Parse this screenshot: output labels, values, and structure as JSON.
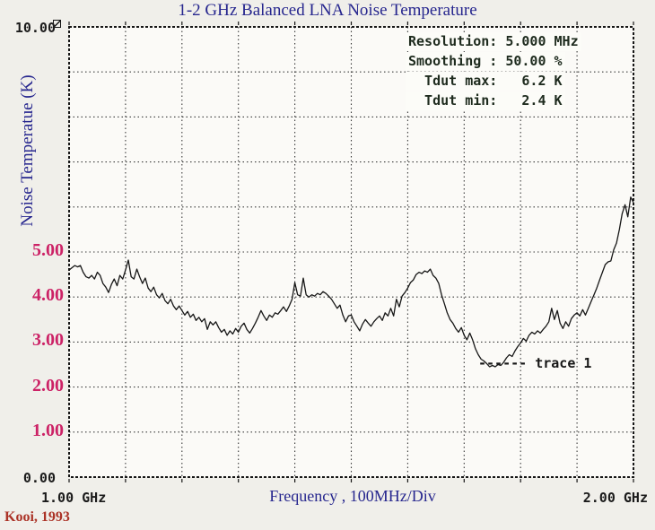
{
  "info_panel": {
    "rows": [
      {
        "label": "Resolution:",
        "value": "5.000",
        "unit": "MHz"
      },
      {
        "label": "Smoothing :",
        "value": "50.00",
        "unit": "%"
      },
      {
        "label": "Tdut max:",
        "value": "6.2",
        "unit": "K"
      },
      {
        "label": "Tdut min:",
        "value": "2.4",
        "unit": "K"
      }
    ]
  },
  "annotation": {
    "leader": "------",
    "text": "trace 1"
  },
  "source_credit": "Kooi, 1993",
  "colors": {
    "title_blue": "#26268e",
    "tick_magenta": "#cc2266",
    "credit_red": "#ab3226",
    "trace_black": "#161616",
    "grid_gray": "#3a3a3a",
    "plot_background": "#fbfaf7",
    "page_background": "#f0efea"
  },
  "chart_data": {
    "type": "line",
    "title": "1-2 GHz Balanced LNA Noise Temperature",
    "xlabel": "Frequency , 100MHz/Div",
    "ylabel": "Noise Temperatue (K)",
    "xlim": [
      1.0,
      2.0
    ],
    "ylim": [
      0,
      10
    ],
    "x_unit": "GHz",
    "y_unit": "K",
    "grid": true,
    "x_grid_step": 0.1,
    "y_grid_step": 1,
    "x_tick_labels": [
      {
        "value": 1.0,
        "label": "1.00 GHz"
      },
      {
        "value": 2.0,
        "label": "2.00 GHz"
      }
    ],
    "y_tick_labels_serif": [
      {
        "value": 5,
        "label": "5.00"
      },
      {
        "value": 4,
        "label": "4.00"
      },
      {
        "value": 3,
        "label": "3.00"
      },
      {
        "value": 2,
        "label": "2.00"
      },
      {
        "value": 1,
        "label": "1.00"
      }
    ],
    "y_tick_labels_mono": [
      {
        "value": 10,
        "label": "10.00"
      },
      {
        "value": 0,
        "label": "0.00"
      }
    ],
    "stats": {
      "resolution_mhz": 5.0,
      "smoothing_pct": 50.0,
      "tdut_max_k": 6.2,
      "tdut_min_k": 2.4
    },
    "series": [
      {
        "name": "trace 1",
        "points": [
          [
            1.0,
            4.6
          ],
          [
            1.005,
            4.65
          ],
          [
            1.01,
            4.7
          ],
          [
            1.015,
            4.67
          ],
          [
            1.02,
            4.7
          ],
          [
            1.025,
            4.55
          ],
          [
            1.03,
            4.45
          ],
          [
            1.035,
            4.42
          ],
          [
            1.04,
            4.48
          ],
          [
            1.045,
            4.4
          ],
          [
            1.05,
            4.55
          ],
          [
            1.055,
            4.48
          ],
          [
            1.06,
            4.3
          ],
          [
            1.065,
            4.22
          ],
          [
            1.07,
            4.1
          ],
          [
            1.075,
            4.28
          ],
          [
            1.08,
            4.4
          ],
          [
            1.085,
            4.25
          ],
          [
            1.09,
            4.48
          ],
          [
            1.095,
            4.4
          ],
          [
            1.1,
            4.6
          ],
          [
            1.105,
            4.82
          ],
          [
            1.11,
            4.45
          ],
          [
            1.115,
            4.4
          ],
          [
            1.12,
            4.62
          ],
          [
            1.125,
            4.45
          ],
          [
            1.13,
            4.3
          ],
          [
            1.135,
            4.42
          ],
          [
            1.14,
            4.2
          ],
          [
            1.145,
            4.12
          ],
          [
            1.15,
            4.22
          ],
          [
            1.155,
            4.05
          ],
          [
            1.16,
            3.98
          ],
          [
            1.165,
            4.08
          ],
          [
            1.17,
            3.92
          ],
          [
            1.175,
            3.85
          ],
          [
            1.18,
            3.95
          ],
          [
            1.185,
            3.8
          ],
          [
            1.19,
            3.72
          ],
          [
            1.195,
            3.8
          ],
          [
            1.2,
            3.7
          ],
          [
            1.205,
            3.6
          ],
          [
            1.21,
            3.68
          ],
          [
            1.215,
            3.55
          ],
          [
            1.22,
            3.62
          ],
          [
            1.225,
            3.48
          ],
          [
            1.23,
            3.55
          ],
          [
            1.235,
            3.45
          ],
          [
            1.24,
            3.52
          ],
          [
            1.245,
            3.28
          ],
          [
            1.25,
            3.45
          ],
          [
            1.255,
            3.38
          ],
          [
            1.26,
            3.45
          ],
          [
            1.265,
            3.32
          ],
          [
            1.27,
            3.22
          ],
          [
            1.275,
            3.28
          ],
          [
            1.28,
            3.15
          ],
          [
            1.285,
            3.25
          ],
          [
            1.29,
            3.18
          ],
          [
            1.295,
            3.3
          ],
          [
            1.3,
            3.22
          ],
          [
            1.305,
            3.35
          ],
          [
            1.31,
            3.42
          ],
          [
            1.315,
            3.28
          ],
          [
            1.32,
            3.2
          ],
          [
            1.325,
            3.3
          ],
          [
            1.33,
            3.42
          ],
          [
            1.335,
            3.55
          ],
          [
            1.34,
            3.7
          ],
          [
            1.345,
            3.58
          ],
          [
            1.35,
            3.48
          ],
          [
            1.355,
            3.6
          ],
          [
            1.36,
            3.55
          ],
          [
            1.365,
            3.65
          ],
          [
            1.37,
            3.62
          ],
          [
            1.375,
            3.7
          ],
          [
            1.38,
            3.78
          ],
          [
            1.385,
            3.68
          ],
          [
            1.39,
            3.8
          ],
          [
            1.395,
            3.95
          ],
          [
            1.4,
            4.32
          ],
          [
            1.405,
            4.05
          ],
          [
            1.41,
            4.02
          ],
          [
            1.415,
            4.42
          ],
          [
            1.42,
            4.05
          ],
          [
            1.425,
            4.0
          ],
          [
            1.43,
            4.05
          ],
          [
            1.435,
            4.02
          ],
          [
            1.44,
            4.08
          ],
          [
            1.445,
            4.05
          ],
          [
            1.45,
            4.12
          ],
          [
            1.455,
            4.08
          ],
          [
            1.46,
            4.02
          ],
          [
            1.465,
            3.95
          ],
          [
            1.47,
            3.85
          ],
          [
            1.475,
            3.75
          ],
          [
            1.48,
            3.82
          ],
          [
            1.485,
            3.6
          ],
          [
            1.49,
            3.45
          ],
          [
            1.495,
            3.58
          ],
          [
            1.5,
            3.6
          ],
          [
            1.505,
            3.45
          ],
          [
            1.51,
            3.35
          ],
          [
            1.515,
            3.25
          ],
          [
            1.52,
            3.4
          ],
          [
            1.525,
            3.5
          ],
          [
            1.53,
            3.42
          ],
          [
            1.535,
            3.35
          ],
          [
            1.54,
            3.45
          ],
          [
            1.545,
            3.52
          ],
          [
            1.55,
            3.58
          ],
          [
            1.555,
            3.48
          ],
          [
            1.56,
            3.65
          ],
          [
            1.565,
            3.58
          ],
          [
            1.57,
            3.75
          ],
          [
            1.575,
            3.58
          ],
          [
            1.58,
            3.95
          ],
          [
            1.585,
            3.78
          ],
          [
            1.59,
            4.02
          ],
          [
            1.595,
            4.1
          ],
          [
            1.6,
            4.2
          ],
          [
            1.605,
            4.32
          ],
          [
            1.61,
            4.38
          ],
          [
            1.615,
            4.5
          ],
          [
            1.62,
            4.55
          ],
          [
            1.625,
            4.52
          ],
          [
            1.63,
            4.58
          ],
          [
            1.635,
            4.55
          ],
          [
            1.64,
            4.62
          ],
          [
            1.645,
            4.48
          ],
          [
            1.65,
            4.42
          ],
          [
            1.655,
            4.3
          ],
          [
            1.66,
            4.05
          ],
          [
            1.665,
            3.85
          ],
          [
            1.67,
            3.65
          ],
          [
            1.675,
            3.5
          ],
          [
            1.68,
            3.42
          ],
          [
            1.685,
            3.3
          ],
          [
            1.69,
            3.22
          ],
          [
            1.695,
            3.32
          ],
          [
            1.7,
            3.15
          ],
          [
            1.705,
            3.05
          ],
          [
            1.71,
            3.2
          ],
          [
            1.715,
            3.05
          ],
          [
            1.72,
            2.85
          ],
          [
            1.725,
            2.72
          ],
          [
            1.73,
            2.62
          ],
          [
            1.735,
            2.58
          ],
          [
            1.74,
            2.52
          ],
          [
            1.745,
            2.45
          ],
          [
            1.75,
            2.48
          ],
          [
            1.755,
            2.45
          ],
          [
            1.76,
            2.5
          ],
          [
            1.765,
            2.48
          ],
          [
            1.77,
            2.55
          ],
          [
            1.775,
            2.65
          ],
          [
            1.78,
            2.72
          ],
          [
            1.785,
            2.68
          ],
          [
            1.79,
            2.8
          ],
          [
            1.795,
            2.9
          ],
          [
            1.8,
            2.98
          ],
          [
            1.805,
            3.08
          ],
          [
            1.81,
            3.02
          ],
          [
            1.815,
            3.15
          ],
          [
            1.82,
            3.22
          ],
          [
            1.825,
            3.18
          ],
          [
            1.83,
            3.25
          ],
          [
            1.835,
            3.2
          ],
          [
            1.84,
            3.28
          ],
          [
            1.845,
            3.35
          ],
          [
            1.85,
            3.45
          ],
          [
            1.855,
            3.75
          ],
          [
            1.86,
            3.5
          ],
          [
            1.865,
            3.7
          ],
          [
            1.87,
            3.42
          ],
          [
            1.875,
            3.3
          ],
          [
            1.88,
            3.45
          ],
          [
            1.885,
            3.35
          ],
          [
            1.89,
            3.52
          ],
          [
            1.895,
            3.6
          ],
          [
            1.9,
            3.65
          ],
          [
            1.905,
            3.58
          ],
          [
            1.91,
            3.72
          ],
          [
            1.915,
            3.6
          ],
          [
            1.92,
            3.75
          ],
          [
            1.925,
            3.9
          ],
          [
            1.93,
            4.05
          ],
          [
            1.935,
            4.2
          ],
          [
            1.94,
            4.38
          ],
          [
            1.945,
            4.55
          ],
          [
            1.95,
            4.72
          ],
          [
            1.955,
            4.78
          ],
          [
            1.96,
            4.8
          ],
          [
            1.965,
            5.05
          ],
          [
            1.97,
            5.2
          ],
          [
            1.975,
            5.5
          ],
          [
            1.98,
            5.85
          ],
          [
            1.985,
            6.05
          ],
          [
            1.99,
            5.78
          ],
          [
            1.995,
            6.22
          ],
          [
            2.0,
            6.1
          ]
        ]
      }
    ]
  }
}
